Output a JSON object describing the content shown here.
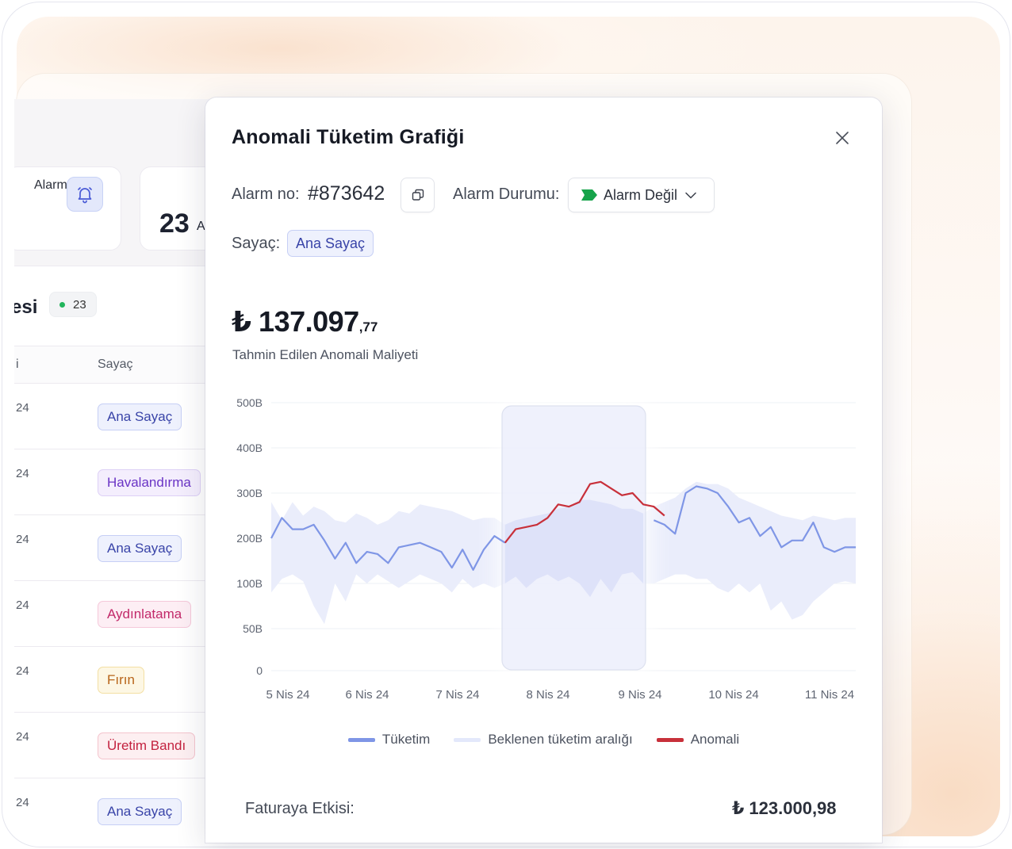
{
  "background": {
    "stat_card": {
      "label": "Alarm",
      "value": "23",
      "value_suffix": "A"
    },
    "list": {
      "title_fragment": "esi",
      "count": "23",
      "column_left_fragment": "i",
      "column_sayac": "Sayaç",
      "rows": [
        {
          "left": "24",
          "tag": "Ana Sayaç",
          "tone": "blue"
        },
        {
          "left": "24",
          "tag": "Havalandırma",
          "tone": "purple"
        },
        {
          "left": "24",
          "tag": "Ana Sayaç",
          "tone": "blue"
        },
        {
          "left": "24",
          "tag": "Aydınlatama",
          "tone": "pink"
        },
        {
          "left": "24",
          "tag": "Fırın",
          "tone": "yellow"
        },
        {
          "left": "24",
          "tag": "Üretim Bandı",
          "tone": "red"
        },
        {
          "left": "24",
          "tag": "Ana Sayaç",
          "tone": "blue"
        }
      ]
    }
  },
  "modal": {
    "title": "Anomali Tüketim Grafiği",
    "close_icon": "close-icon",
    "alarm_no_label": "Alarm no:",
    "alarm_no_value": "#873642",
    "copy_icon": "copy-icon",
    "alarm_status_label": "Alarm Durumu:",
    "alarm_status_value": "Alarm Değil",
    "alarm_status_color": "#16a34a",
    "sayac_label": "Sayaç:",
    "sayac_value": "Ana Sayaç",
    "amount_main": "₺ 137.097",
    "amount_decimal": ",77",
    "amount_caption": "Tahmin Edilen Anomali Maliyeti",
    "fatura_label": "Faturaya Etkisi:",
    "fatura_value": "₺ 123.000,98"
  },
  "chart_data": {
    "type": "line",
    "y_ticks": [
      "500B",
      "400B",
      "300B",
      "200B",
      "100B",
      "50B",
      "0"
    ],
    "x_ticks": [
      "5 Nis 24",
      "6 Nis 24",
      "7 Nis 24",
      "8 Nis 24",
      "9 Nis 24",
      "10 Nis 24",
      "11 Nis 24"
    ],
    "legend": [
      {
        "name": "Tüketim",
        "color": "#7f96e6"
      },
      {
        "name": "Beklenen tüketim aralığı",
        "color": "#e3e8fb"
      },
      {
        "name": "Anomali",
        "color": "#c8303a"
      }
    ],
    "series_consumption": [
      200,
      245,
      220,
      220,
      230,
      195,
      155,
      190,
      145,
      170,
      165,
      145,
      180,
      185,
      190,
      180,
      170,
      135,
      175,
      130,
      175,
      205,
      190,
      null,
      null,
      null,
      null,
      null,
      null,
      null,
      null,
      null,
      null,
      null,
      null,
      null,
      240,
      230,
      210,
      300,
      315,
      310,
      300,
      270,
      235,
      245,
      205,
      225,
      180,
      195,
      195,
      235,
      180,
      170,
      180,
      180
    ],
    "series_anomaly_start_index": 21,
    "series_anomaly": [
      190,
      220,
      225,
      230,
      245,
      275,
      270,
      280,
      320,
      325,
      310,
      295,
      300,
      275,
      270,
      250
    ],
    "band_upper": [
      280,
      240,
      280,
      250,
      270,
      260,
      240,
      235,
      255,
      245,
      230,
      240,
      260,
      255,
      275,
      270,
      265,
      260,
      250,
      240,
      245,
      245,
      230,
      240,
      245,
      250,
      255,
      265,
      270,
      285,
      285,
      280,
      275,
      265,
      265,
      255,
      270,
      280,
      290,
      310,
      325,
      320,
      320,
      310,
      290,
      280,
      270,
      260,
      250,
      245,
      240,
      250,
      245,
      240,
      245,
      245
    ],
    "band_lower": [
      90,
      110,
      120,
      105,
      75,
      55,
      100,
      80,
      120,
      100,
      120,
      105,
      95,
      105,
      120,
      110,
      100,
      90,
      110,
      95,
      100,
      95,
      100,
      115,
      95,
      110,
      120,
      105,
      115,
      100,
      85,
      110,
      90,
      120,
      125,
      100,
      100,
      110,
      120,
      120,
      110,
      110,
      95,
      90,
      100,
      90,
      100,
      70,
      80,
      60,
      65,
      80,
      90,
      100,
      105,
      100
    ],
    "highlight_range": [
      "8 Nis 24",
      "9 Nis 24"
    ],
    "grid": true
  }
}
